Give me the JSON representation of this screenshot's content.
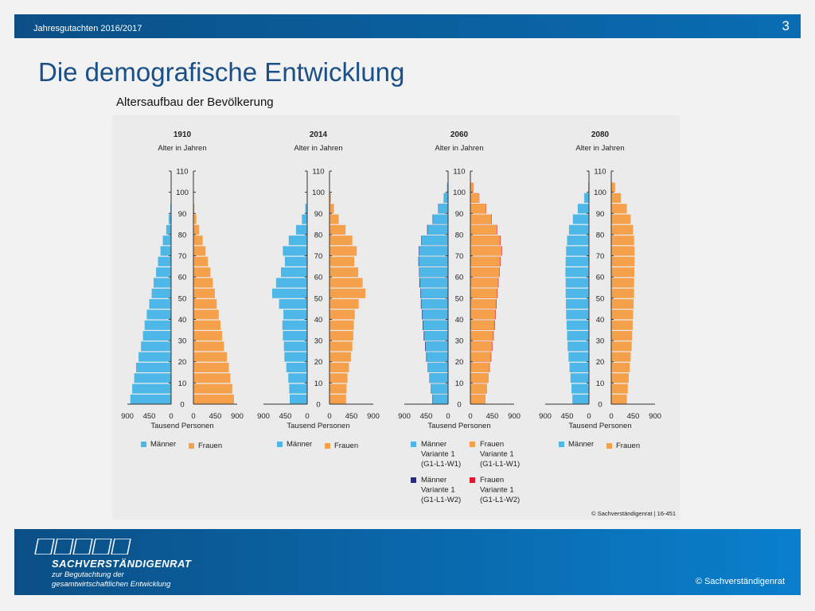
{
  "header": {
    "subtitle": "Jahresgutachten 2016/2017",
    "page_number": "3"
  },
  "title": "Die demografische Entwicklung",
  "footer": {
    "brand": "SACHVERSTÄNDIGENRAT",
    "tagline_1": "zur Begutachtung der",
    "tagline_2": "gesamtwirtschaftlichen Entwicklung",
    "copyright": "© Sachverständigenrat"
  },
  "colors": {
    "men": "#4db8e8",
    "women": "#f5a04a",
    "men_w2": "#2e2a7a",
    "women_w2": "#e0182d",
    "header_bar": "#0b5c9c"
  },
  "chart_data": {
    "type": "bar",
    "title": "Altersaufbau der Bevölkerung",
    "ylabel": "Alter in Jahren",
    "xlabel": "Tausend Personen",
    "y_ticks": [
      "0",
      "10",
      "20",
      "30",
      "40",
      "50",
      "60",
      "70",
      "80",
      "90",
      "100",
      "110"
    ],
    "x_ticks_left": [
      "900",
      "450",
      "0"
    ],
    "x_ticks_right": [
      "0",
      "450",
      "900"
    ],
    "xlim": [
      0,
      900
    ],
    "ylim": [
      0,
      110
    ],
    "ages": [
      0,
      5,
      10,
      15,
      20,
      25,
      30,
      35,
      40,
      45,
      50,
      55,
      60,
      65,
      70,
      75,
      80,
      85,
      90,
      95,
      100,
      105
    ],
    "source": "© Sachverständigenrat | 16-451",
    "pyramids": [
      {
        "year": "1910",
        "legend": [
          "Männer",
          "Frauen"
        ],
        "men": [
          840,
          800,
          760,
          720,
          670,
          620,
          580,
          545,
          500,
          450,
          400,
          360,
          310,
          270,
          220,
          170,
          100,
          50,
          15,
          3,
          0,
          0
        ],
        "women": [
          835,
          800,
          760,
          730,
          690,
          630,
          590,
          560,
          520,
          480,
          440,
          400,
          350,
          300,
          250,
          190,
          120,
          60,
          20,
          5,
          1,
          0
        ]
      },
      {
        "year": "2014",
        "legend": [
          "Männer",
          "Frauen"
        ],
        "men": [
          360,
          370,
          390,
          430,
          470,
          480,
          500,
          510,
          490,
          580,
          720,
          640,
          540,
          460,
          500,
          380,
          230,
          110,
          40,
          10,
          1,
          0
        ],
        "women": [
          340,
          350,
          370,
          400,
          440,
          470,
          490,
          500,
          520,
          600,
          740,
          680,
          590,
          510,
          560,
          470,
          330,
          190,
          90,
          30,
          3,
          0
        ],
        "women_ages_note": ""
      },
      {
        "year": "2060",
        "legend": [
          "Männer Variante 1 (G1-L1-W1)",
          "Frauen Variante 1 (G1-L1-W1)",
          "Männer Variante 1 (G1-L1-W2)",
          "Frauen Variante 1 (G1-L1-W2)"
        ],
        "men": [
          320,
          350,
          380,
          410,
          440,
          460,
          490,
          510,
          530,
          550,
          560,
          580,
          590,
          600,
          590,
          540,
          420,
          310,
          200,
          90,
          20,
          0
        ],
        "women": [
          300,
          330,
          360,
          390,
          420,
          440,
          470,
          490,
          510,
          530,
          550,
          570,
          590,
          610,
          640,
          610,
          540,
          430,
          320,
          180,
          60,
          0
        ],
        "men_w2": [
          325,
          355,
          385,
          418,
          450,
          472,
          500,
          522,
          540,
          560,
          570,
          590,
          598,
          610,
          600,
          550,
          430,
          318,
          205,
          92,
          20,
          0
        ],
        "women_w2": [
          305,
          335,
          366,
          398,
          430,
          452,
          480,
          502,
          520,
          540,
          560,
          580,
          600,
          620,
          650,
          620,
          550,
          438,
          326,
          184,
          62,
          0
        ]
      },
      {
        "year": "2080",
        "legend": [
          "Männer",
          "Frauen"
        ],
        "men": [
          340,
          360,
          380,
          400,
          420,
          440,
          450,
          460,
          470,
          475,
          480,
          480,
          485,
          480,
          470,
          450,
          410,
          330,
          230,
          100,
          15,
          0
        ],
        "women": [
          320,
          340,
          360,
          380,
          400,
          420,
          430,
          440,
          450,
          460,
          470,
          470,
          475,
          480,
          480,
          470,
          450,
          400,
          320,
          200,
          80,
          0
        ]
      }
    ]
  }
}
